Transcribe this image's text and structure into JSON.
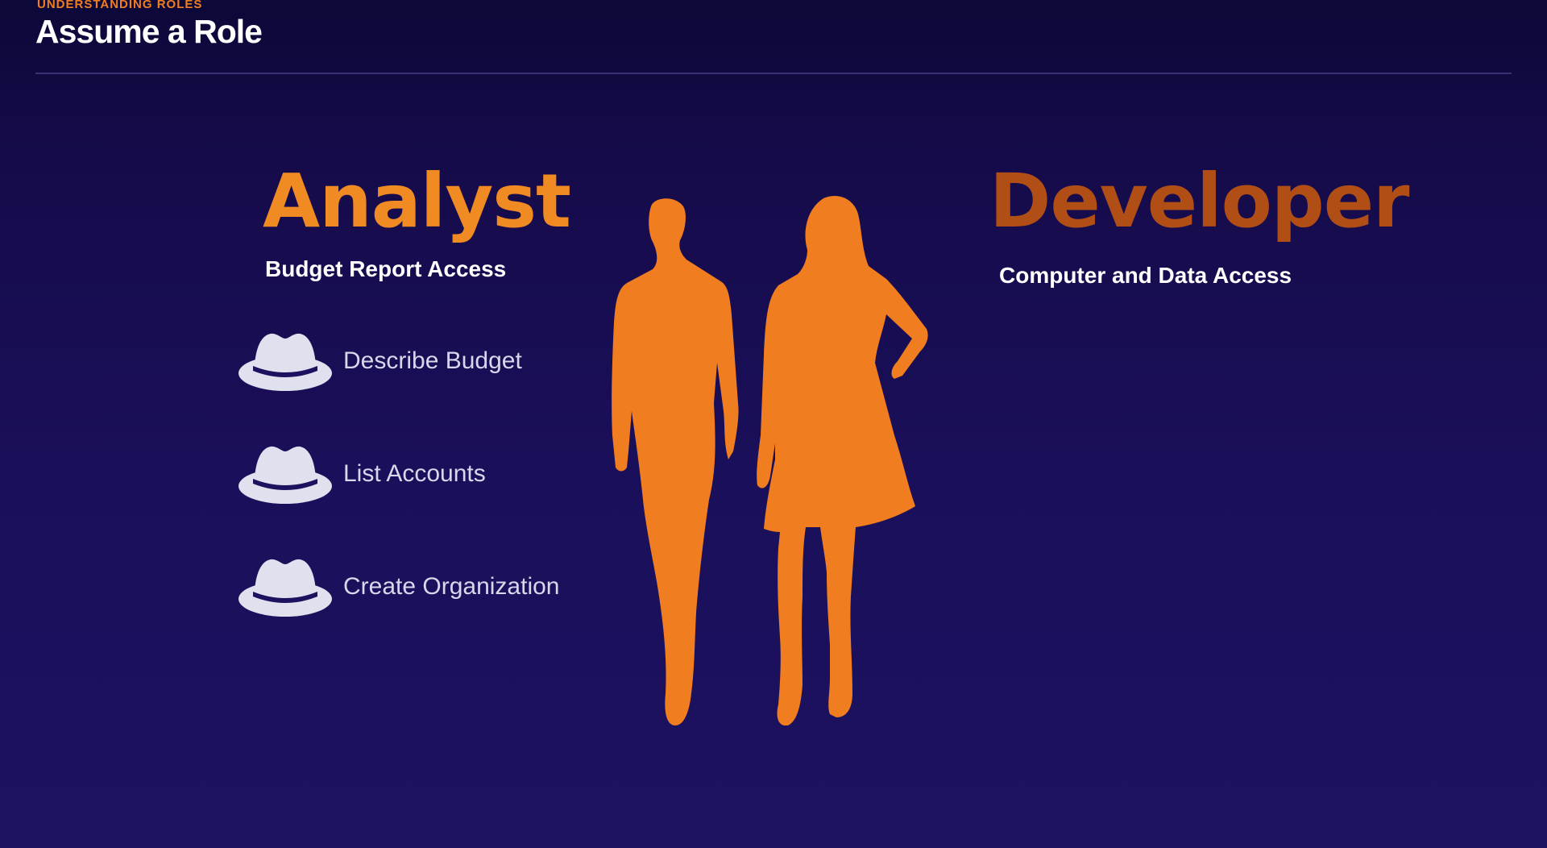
{
  "header": {
    "eyebrow": "UNDERSTANDING ROLES",
    "title": "Assume a Role"
  },
  "analyst": {
    "heading": "Analyst",
    "subheading": "Budget Report Access",
    "permissions": [
      {
        "label": "Describe Budget",
        "icon": "hat-icon"
      },
      {
        "label": "List Accounts",
        "icon": "hat-icon"
      },
      {
        "label": "Create Organization",
        "icon": "hat-icon"
      }
    ]
  },
  "developer": {
    "heading": "Developer",
    "subheading": "Computer and Data Access"
  },
  "colors": {
    "accent_orange": "#f08a22",
    "developer_orange": "#b04e16",
    "background": "#1a0f5a",
    "hat": "#dfe1ee"
  }
}
